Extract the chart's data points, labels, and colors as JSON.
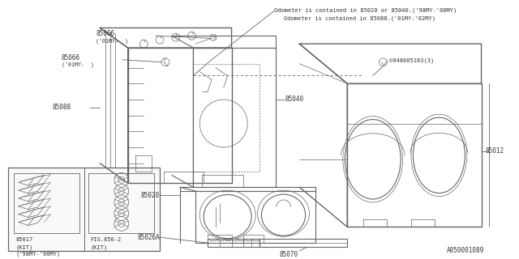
{
  "bg_color": "#ffffff",
  "line_color": "#666666",
  "text_color": "#333333",
  "diagram_id": "A850001089",
  "note_line1": "Odometer is contained in 85020 or 85040.('98MY-'00MY)",
  "note_line2": "Odometer is contained in 85088.('01MY-'02MY)",
  "lw_main": 0.8,
  "lw_thin": 0.5,
  "lw_thick": 1.0,
  "fs_label": 5.5,
  "fs_note": 5.0,
  "fs_id": 5.5
}
